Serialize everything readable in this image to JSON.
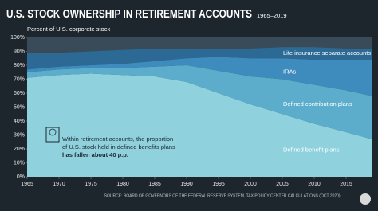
{
  "chart_data": {
    "type": "stacked_area",
    "title": "U.S. STOCK OWNERSHIP IN RETIREMENT ACCOUNTS",
    "subtitle": "1965–2019",
    "y_label": "Percent of U.S. corporate stock",
    "annotation": [
      "Within retirement accounts, the proportion",
      "of U.S. stock held in defined benefits plans",
      "has fallen about 40 p.p."
    ],
    "source": "SOURCE: BOARD OF GOVERNORS OF THE FEDERAL RESERVE SYSTEM, TAX POLICY CENTER CALCULATIONS (OCT 2020).",
    "x": [
      1965,
      1970,
      1975,
      1980,
      1985,
      1990,
      1995,
      2000,
      2005,
      2010,
      2015,
      2019
    ],
    "series": [
      {
        "name": "Defined benefit plans",
        "color": "#8fd2dd",
        "values": [
          71,
          73,
          74,
          73,
          72,
          68,
          60,
          52,
          45,
          38,
          32,
          27
        ]
      },
      {
        "name": "Defined contribution plans",
        "color": "#5badcb",
        "values": [
          4,
          4,
          4,
          5,
          7,
          12,
          16,
          20,
          25,
          28,
          30,
          31
        ]
      },
      {
        "name": "IRAs",
        "color": "#3e8bbd",
        "values": [
          2,
          2,
          2,
          3,
          4,
          5,
          10,
          13,
          15,
          18,
          22,
          26
        ]
      },
      {
        "name": "Life insurance separate accounts",
        "color": "#2c6a95",
        "values": [
          12,
          10,
          10,
          10,
          9,
          7,
          6,
          7,
          8,
          9,
          8,
          8
        ]
      }
    ],
    "xlim": [
      1965,
      2019
    ],
    "xticks": [
      1965,
      1970,
      1975,
      1980,
      1985,
      1990,
      1995,
      2000,
      2005,
      2010,
      2015
    ],
    "ylim": [
      0,
      100
    ],
    "yticks": [
      {
        "value": 0,
        "label": "0%"
      },
      {
        "value": 10,
        "label": "10%"
      },
      {
        "value": 20,
        "label": "20%"
      },
      {
        "value": 30,
        "label": "30%"
      },
      {
        "value": 40,
        "label": "40%"
      },
      {
        "value": 50,
        "label": "50%"
      },
      {
        "value": 60,
        "label": "60%"
      },
      {
        "value": 70,
        "label": "70%"
      },
      {
        "value": 80,
        "label": "80%"
      },
      {
        "value": 90,
        "label": "90%"
      },
      {
        "value": 100,
        "label": "100%"
      }
    ],
    "grid": false
  }
}
